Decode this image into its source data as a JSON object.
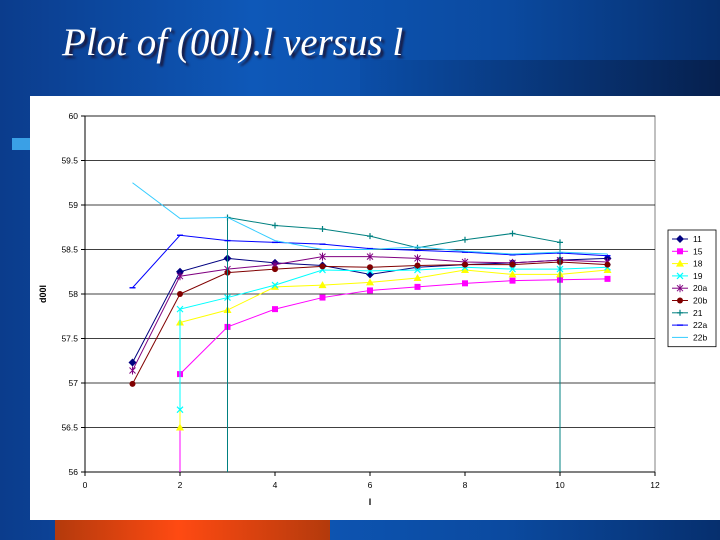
{
  "slide": {
    "title": "Plot of (00l).l versus l"
  },
  "chart_data": {
    "type": "line",
    "title": "",
    "xlabel": "l",
    "ylabel": "d00l",
    "xlim": [
      0,
      12
    ],
    "ylim": [
      56,
      60
    ],
    "x_ticks": [
      "0",
      "2",
      "4",
      "6",
      "8",
      "10",
      "12"
    ],
    "y_ticks": [
      "56",
      "56.5",
      "57",
      "57.5",
      "58",
      "58.5",
      "59",
      "59.5",
      "60"
    ],
    "x_tick_values": [
      0,
      2,
      4,
      6,
      8,
      10,
      12
    ],
    "y_tick_values": [
      56,
      56.5,
      57,
      57.5,
      58,
      58.5,
      59,
      59.5,
      60
    ],
    "grid": {
      "horizontal": true,
      "vertical": false
    },
    "legend_position": "right",
    "series": [
      {
        "name": "11",
        "color": "#000080",
        "marker": "diamond",
        "points": [
          [
            1,
            57.23
          ],
          [
            2,
            58.25
          ],
          [
            3,
            58.4
          ],
          [
            4,
            58.35
          ],
          [
            5,
            58.32
          ],
          [
            6,
            58.22
          ],
          [
            7,
            58.3
          ],
          [
            8,
            58.33
          ],
          [
            9,
            58.35
          ],
          [
            10,
            58.38
          ],
          [
            11,
            58.4
          ]
        ]
      },
      {
        "name": "15",
        "color": "#ff00ff",
        "marker": "square",
        "points": [
          [
            2,
            56
          ],
          [
            2,
            57.1
          ],
          [
            3,
            57.63
          ],
          [
            4,
            57.83
          ],
          [
            5,
            57.96
          ],
          [
            6,
            58.04
          ],
          [
            7,
            58.08
          ],
          [
            8,
            58.12
          ],
          [
            9,
            58.15
          ],
          [
            10,
            58.16
          ],
          [
            11,
            58.17
          ]
        ]
      },
      {
        "name": "18",
        "color": "#ffff00",
        "marker": "triangle",
        "points": [
          [
            2,
            56.5
          ],
          [
            2,
            57.68
          ],
          [
            3,
            57.82
          ],
          [
            4,
            58.08
          ],
          [
            5,
            58.1
          ],
          [
            6,
            58.13
          ],
          [
            7,
            58.18
          ],
          [
            8,
            58.27
          ],
          [
            9,
            58.22
          ],
          [
            10,
            58.22
          ],
          [
            11,
            58.27
          ]
        ]
      },
      {
        "name": "19",
        "color": "#00ffff",
        "marker": "x",
        "points": [
          [
            2,
            56.7
          ],
          [
            2,
            57.83
          ],
          [
            3,
            57.96
          ],
          [
            4,
            58.1
          ],
          [
            5,
            58.27
          ],
          [
            6,
            58.26
          ],
          [
            7,
            58.27
          ],
          [
            8,
            58.3
          ],
          [
            9,
            58.28
          ],
          [
            10,
            58.28
          ],
          [
            11,
            58.3
          ]
        ]
      },
      {
        "name": "20a",
        "color": "#800080",
        "marker": "asterisk",
        "points": [
          [
            1,
            57.14
          ],
          [
            2,
            58.2
          ],
          [
            3,
            58.28
          ],
          [
            4,
            58.33
          ],
          [
            5,
            58.42
          ],
          [
            6,
            58.42
          ],
          [
            7,
            58.4
          ],
          [
            8,
            58.36
          ],
          [
            9,
            58.35
          ],
          [
            10,
            58.38
          ],
          [
            11,
            58.36
          ]
        ]
      },
      {
        "name": "20b",
        "color": "#800000",
        "marker": "circle",
        "points": [
          [
            1,
            56.99
          ],
          [
            2,
            58.0
          ],
          [
            3,
            58.24
          ],
          [
            4,
            58.28
          ],
          [
            5,
            58.31
          ],
          [
            6,
            58.3
          ],
          [
            7,
            58.32
          ],
          [
            8,
            58.33
          ],
          [
            9,
            58.33
          ],
          [
            10,
            58.36
          ],
          [
            11,
            58.33
          ]
        ]
      },
      {
        "name": "21",
        "color": "#008080",
        "marker": "plus",
        "points": [
          [
            3,
            56
          ],
          [
            3,
            58.86
          ],
          [
            4,
            58.77
          ],
          [
            5,
            58.73
          ],
          [
            6,
            58.65
          ],
          [
            7,
            58.52
          ],
          [
            8,
            58.61
          ],
          [
            9,
            58.68
          ],
          [
            10,
            58.58
          ],
          [
            10,
            56
          ]
        ]
      },
      {
        "name": "22a",
        "color": "#0000ff",
        "marker": "dash",
        "points": [
          [
            1,
            58.07
          ],
          [
            2,
            58.66
          ],
          [
            3,
            58.6
          ],
          [
            4,
            58.58
          ],
          [
            5,
            58.56
          ],
          [
            6,
            58.51
          ],
          [
            7,
            58.49
          ],
          [
            8,
            58.47
          ],
          [
            9,
            58.44
          ],
          [
            10,
            58.46
          ],
          [
            11,
            58.43
          ]
        ]
      },
      {
        "name": "22b",
        "color": "#33ccff",
        "marker": "none",
        "points": [
          [
            1,
            59.25
          ],
          [
            2,
            58.85
          ],
          [
            3,
            58.86
          ],
          [
            4,
            58.6
          ],
          [
            5,
            58.5
          ],
          [
            6,
            58.5
          ],
          [
            7,
            58.53
          ],
          [
            8,
            58.48
          ],
          [
            9,
            58.45
          ],
          [
            10,
            58.47
          ],
          [
            11,
            58.45
          ]
        ]
      }
    ]
  }
}
